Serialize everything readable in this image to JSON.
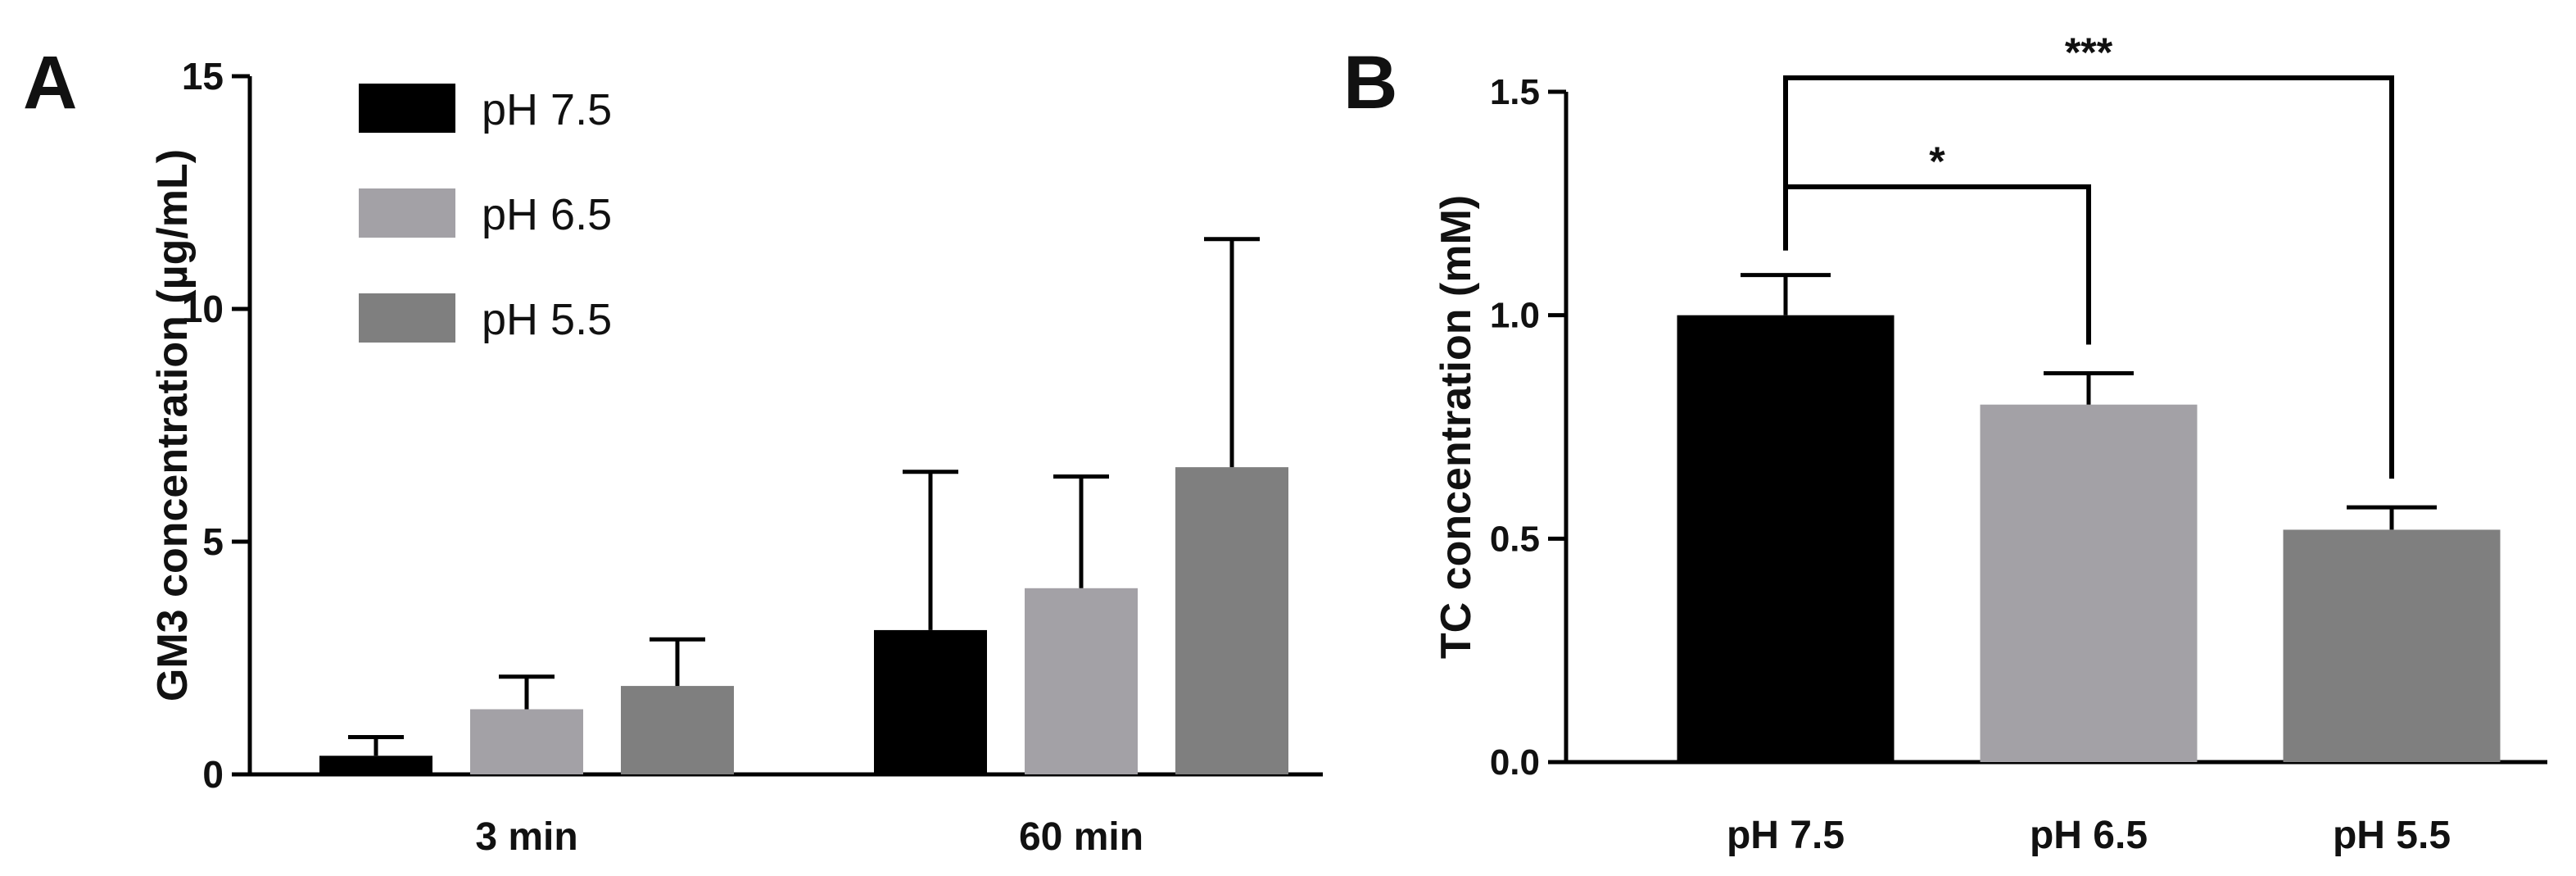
{
  "chart_data": [
    {
      "panel": "A",
      "type": "bar",
      "ylabel": "GM3 concentration (µg/mL)",
      "xlabel": "",
      "categories": [
        "3 min",
        "60 min"
      ],
      "ylim": [
        0,
        15
      ],
      "yticks": [
        0,
        5,
        10,
        15
      ],
      "legend_position": "top-left",
      "series": [
        {
          "name": "pH 7.5",
          "color": "#000000",
          "values": [
            0.4,
            3.1
          ],
          "errors": [
            0.4,
            3.4
          ]
        },
        {
          "name": "pH 6.5",
          "color": "#a3a1a6",
          "values": [
            1.4,
            4.0
          ],
          "errors": [
            0.7,
            2.4
          ]
        },
        {
          "name": "pH 5.5",
          "color": "#7f7f7f",
          "values": [
            1.9,
            6.6
          ],
          "errors": [
            1.0,
            4.9
          ]
        }
      ]
    },
    {
      "panel": "B",
      "type": "bar",
      "ylabel": "TC concentration (mM)",
      "xlabel": "",
      "categories": [
        "pH 7.5",
        "pH 6.5",
        "pH 5.5"
      ],
      "ylim": [
        0,
        1.5
      ],
      "yticks": [
        "0.0",
        "0.5",
        "1.0",
        "1.5"
      ],
      "colors": [
        "#000000",
        "#a3a1a6",
        "#7f7f7f"
      ],
      "values": [
        1.0,
        0.8,
        0.52
      ],
      "errors": [
        0.09,
        0.07,
        0.05
      ],
      "significance": [
        {
          "from": 0,
          "to": 1,
          "label": "*"
        },
        {
          "from": 0,
          "to": 2,
          "label": "***"
        }
      ]
    }
  ]
}
